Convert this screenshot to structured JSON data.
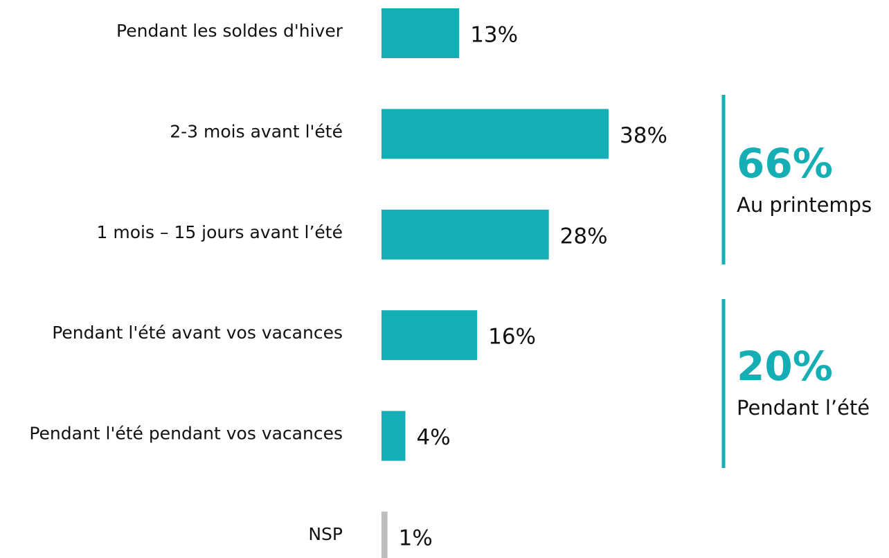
{
  "chart_data": {
    "type": "bar",
    "orientation": "horizontal",
    "categories": [
      "Pendant les soldes d'hiver",
      "2-3 mois avant l'été",
      "1 mois – 15 jours avant l’été",
      "Pendant l'été avant vos vacances",
      "Pendant l'été pendant vos vacances",
      "NSP"
    ],
    "values": [
      13,
      38,
      28,
      16,
      4,
      1
    ],
    "value_labels": [
      "13%",
      "38%",
      "28%",
      "16%",
      "4%",
      "1%"
    ],
    "colors": [
      "#14aeb4",
      "#14aeb4",
      "#14aeb4",
      "#14aeb4",
      "#14aeb4",
      "#bdbdbd"
    ],
    "annotations": [
      {
        "label": "66%",
        "text": "Au printemps"
      },
      {
        "label": "20%",
        "text": "Pendant l’été"
      }
    ]
  }
}
